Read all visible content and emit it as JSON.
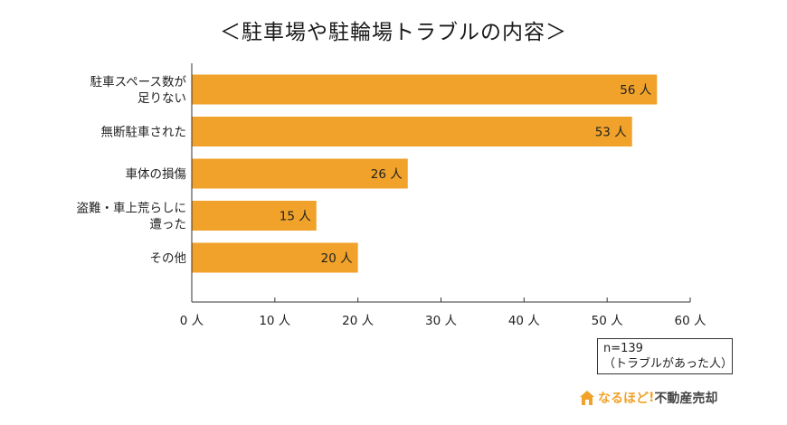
{
  "chart_data": {
    "type": "bar",
    "orientation": "horizontal",
    "title": "＜駐車場や駐輪場トラブルの内容＞",
    "categories": [
      [
        "駐車スペース数が",
        "足りない"
      ],
      [
        "無断駐車された"
      ],
      [
        "車体の損傷"
      ],
      [
        "盗難・車上荒らしに",
        "遭った"
      ],
      [
        "その他"
      ]
    ],
    "values": [
      56,
      53,
      26,
      15,
      20
    ],
    "data_labels": [
      "56 人",
      "53 人",
      "26 人",
      "15 人",
      "20 人"
    ],
    "xlim": [
      0,
      60
    ],
    "x_ticks": [
      0,
      10,
      20,
      30,
      40,
      50,
      60
    ],
    "x_tick_labels": [
      "0 人",
      "10 人",
      "20 人",
      "30 人",
      "40 人",
      "50 人",
      "60 人"
    ],
    "bar_color": "#f0a22a",
    "grid": false
  },
  "note": {
    "line1": "n=139",
    "line2": "（トラブルがあった人）"
  },
  "logo": {
    "part1": "なるほど",
    "part2": "不動産売却",
    "icon": "house-icon",
    "accent_color": "#f0a22a"
  }
}
